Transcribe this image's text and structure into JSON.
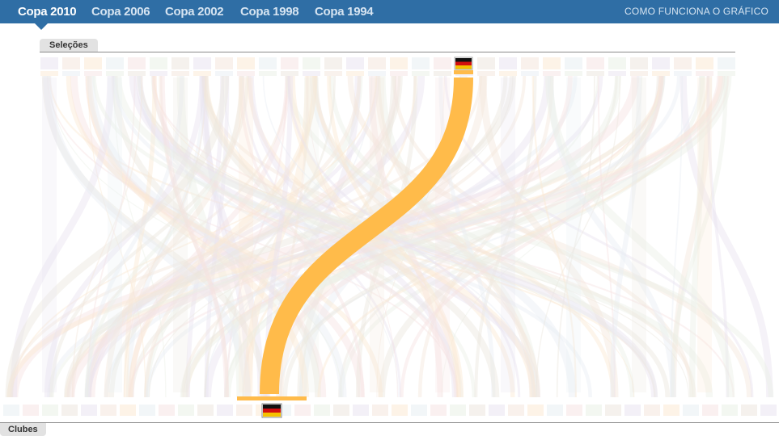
{
  "nav": {
    "tabs": [
      {
        "label": "Copa 2010",
        "active": true
      },
      {
        "label": "Copa 2006",
        "active": false
      },
      {
        "label": "Copa 2002",
        "active": false
      },
      {
        "label": "Copa 1998",
        "active": false
      },
      {
        "label": "Copa 1994",
        "active": false
      }
    ],
    "how_it_works": "COMO FUNCIONA O GRÁFICO"
  },
  "sections": {
    "top_label": "Seleções",
    "bottom_label": "Clubes"
  },
  "selection": {
    "team_flag": "germany-flag",
    "club_flag": "germany-flag",
    "highlight_color": "#ffbb4a"
  },
  "colors": {
    "header": "#2f6ea5",
    "highlight": "#ffbb4a",
    "faded_flow": "#efe7dd"
  }
}
